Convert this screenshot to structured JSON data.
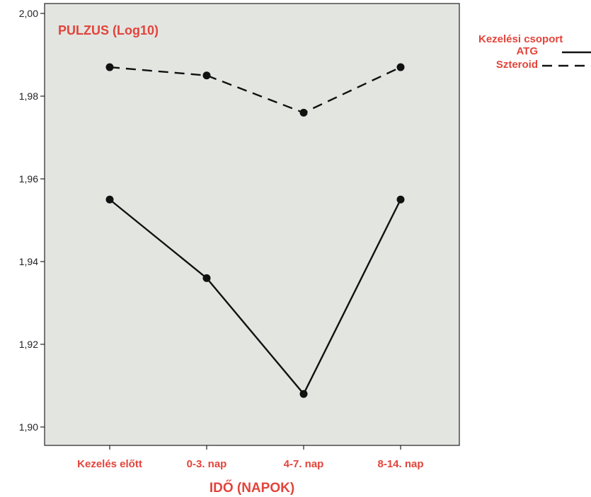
{
  "chart_data": {
    "type": "line",
    "title": "PULZUS (Log10)",
    "xlabel": "IDŐ (NAPOK)",
    "ylabel": "",
    "categories": [
      "Kezelés előtt",
      "0-3. nap",
      "4-7. nap",
      "8-14. nap"
    ],
    "ylim": [
      1.895,
      2.005
    ],
    "yticks": [
      1.9,
      1.92,
      1.94,
      1.96,
      1.98,
      2.0
    ],
    "ytick_labels": [
      "1,90",
      "1,92",
      "1,94",
      "1,96",
      "1,98",
      "2,00"
    ],
    "grid": false,
    "legend": {
      "title": "Kezelési csoport",
      "placement": "right-outside"
    },
    "series": [
      {
        "name": "ATG",
        "style": "solid",
        "values": [
          1.955,
          1.936,
          1.908,
          1.955
        ]
      },
      {
        "name": "Szteroid",
        "style": "dashed",
        "values": [
          1.987,
          1.985,
          1.976,
          1.987
        ]
      }
    ],
    "colors": {
      "plot_background": "#e3e5e1",
      "text_accent": "#e2443b",
      "line": "#111111"
    }
  }
}
